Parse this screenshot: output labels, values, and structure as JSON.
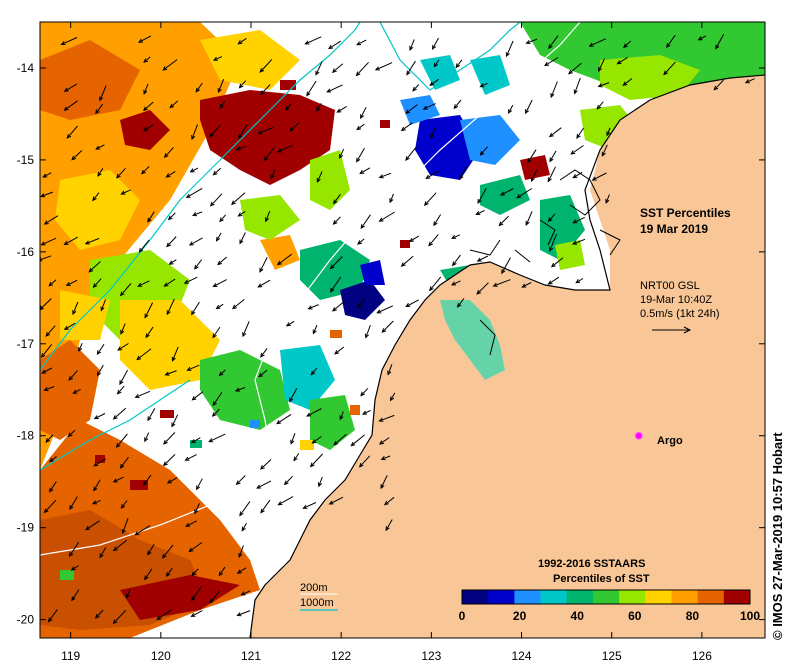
{
  "title": {
    "line1": "SST Percentiles",
    "line2": "19 Mar 2019"
  },
  "current_info": {
    "line1": "NRT00 GSL",
    "line2": "19-Mar 10:40Z",
    "line3": "0.5m/s (1kt 24h)"
  },
  "argo": {
    "label": "Argo",
    "lon": 125.3,
    "lat": -18.0,
    "color": "#ff00ff"
  },
  "colorbar": {
    "title_line1": "1992-2016 SSTAARS",
    "title_line2": "Percentiles of SST",
    "ticks": [
      "0",
      "20",
      "40",
      "60",
      "80",
      "100"
    ],
    "colors": [
      "#000080",
      "#0000cd",
      "#1e90ff",
      "#00c8c8",
      "#00b46e",
      "#32c832",
      "#96e600",
      "#ffd200",
      "#ff9f00",
      "#e66400",
      "#a00000"
    ]
  },
  "depth_legend": {
    "label1": "200m",
    "label2": "1000m",
    "color2": "#00c8c8"
  },
  "axes": {
    "x_ticks": [
      "119",
      "120",
      "121",
      "122",
      "123",
      "124",
      "125",
      "126"
    ],
    "y_ticks": [
      "-14",
      "-15",
      "-16",
      "-17",
      "-18",
      "-19",
      "-20"
    ],
    "lon_range": [
      118.66,
      126.7
    ],
    "lat_range": [
      -20.2,
      -13.5
    ]
  },
  "credit": "© IMOS 27-Mar-2019 10:57 Hobart",
  "land_color": "#f8c697"
}
